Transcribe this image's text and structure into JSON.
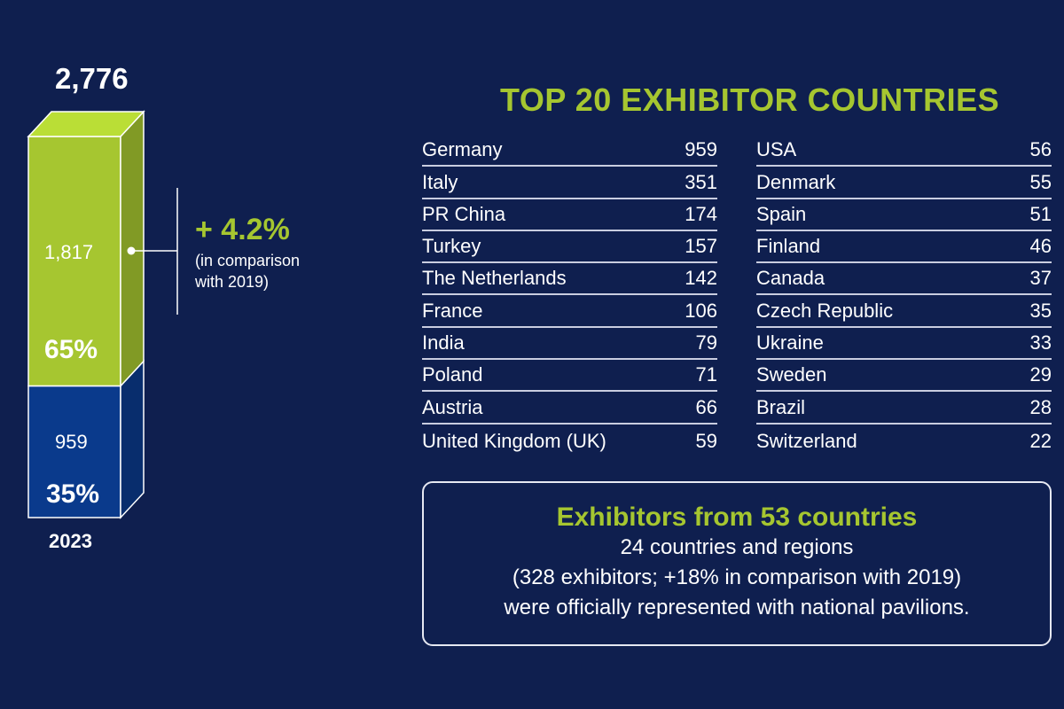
{
  "chart_data": {
    "type": "bar",
    "categories": [
      "2023"
    ],
    "total": "2,776",
    "segments": [
      {
        "value": 959,
        "label": "959",
        "percent": "35%",
        "color": "#0a3a8c"
      },
      {
        "value": 1817,
        "label": "1,817",
        "percent": "65%",
        "color": "#a6c630"
      }
    ],
    "change": {
      "value": "+ 4.2%",
      "note_line1": "(in comparison",
      "note_line2": "with 2019)"
    }
  },
  "table": {
    "title": "TOP 20 EXHIBITOR COUNTRIES",
    "left": [
      {
        "country": "Germany",
        "count": "959"
      },
      {
        "country": "Italy",
        "count": "351"
      },
      {
        "country": "PR China",
        "count": "174"
      },
      {
        "country": "Turkey",
        "count": "157"
      },
      {
        "country": "The Netherlands",
        "count": "142"
      },
      {
        "country": "France",
        "count": "106"
      },
      {
        "country": "India",
        "count": "79"
      },
      {
        "country": "Poland",
        "count": "71"
      },
      {
        "country": "Austria",
        "count": "66"
      },
      {
        "country": "United Kingdom (UK)",
        "count": "59"
      }
    ],
    "right": [
      {
        "country": "USA",
        "count": "56"
      },
      {
        "country": "Denmark",
        "count": "55"
      },
      {
        "country": "Spain",
        "count": "51"
      },
      {
        "country": "Finland",
        "count": "46"
      },
      {
        "country": "Canada",
        "count": "37"
      },
      {
        "country": "Czech Republic",
        "count": "35"
      },
      {
        "country": "Ukraine",
        "count": "33"
      },
      {
        "country": "Sweden",
        "count": "29"
      },
      {
        "country": "Brazil",
        "count": "28"
      },
      {
        "country": "Switzerland",
        "count": "22"
      }
    ]
  },
  "info": {
    "heading": "Exhibitors from 53 countries",
    "line1": "24 countries and regions",
    "line2": "(328 exhibitors; +18% in comparison with 2019)",
    "line3": "were officially represented with national pavilions."
  },
  "colors": {
    "background": "#0f1f4f",
    "accent": "#a6c630",
    "bar_bottom": "#0a3a8c"
  }
}
